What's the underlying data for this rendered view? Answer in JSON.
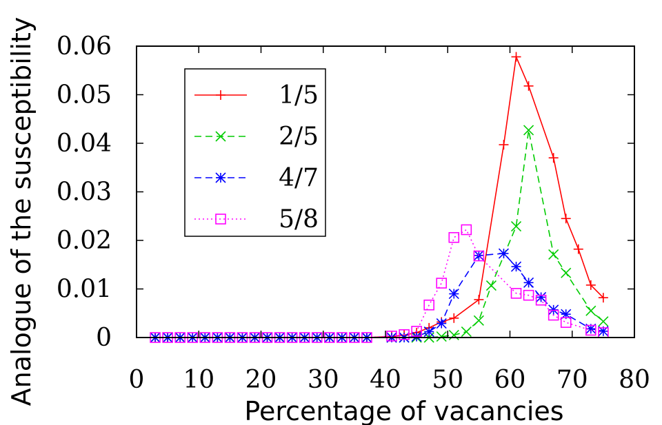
{
  "chart_data": {
    "type": "line",
    "xlabel": "Percentage of vacancies",
    "ylabel": "Analogue of the susceptibility",
    "xlim": [
      0,
      80
    ],
    "ylim": [
      0,
      0.06
    ],
    "x_ticks": [
      "0",
      "10",
      "20",
      "30",
      "40",
      "50",
      "60",
      "70",
      "80"
    ],
    "y_ticks": [
      "0",
      "0.01",
      "0.02",
      "0.03",
      "0.04",
      "0.05",
      "0.06"
    ],
    "grid": false,
    "legend_position": "top-left",
    "series": [
      {
        "name": "1/5",
        "color": "#ff0000",
        "line_style": "solid",
        "marker": "plus",
        "points": [
          [
            3,
            0
          ],
          [
            5,
            0
          ],
          [
            7,
            0
          ],
          [
            9,
            0
          ],
          [
            11,
            0
          ],
          [
            13,
            0
          ],
          [
            15,
            0
          ],
          [
            17,
            0
          ],
          [
            19,
            0
          ],
          [
            21,
            0
          ],
          [
            23,
            0
          ],
          [
            25,
            0
          ],
          [
            27,
            0
          ],
          [
            29,
            0
          ],
          [
            31,
            0
          ],
          [
            33,
            0
          ],
          [
            35,
            0
          ],
          [
            37,
            0
          ],
          [
            41,
            0.0002
          ],
          [
            43,
            0.0005
          ],
          [
            45,
            0.001
          ],
          [
            47,
            0.002
          ],
          [
            49,
            0.0032
          ],
          [
            51,
            0.004
          ],
          [
            55,
            0.0078
          ],
          [
            59,
            0.0397
          ],
          [
            61,
            0.0578
          ],
          [
            63,
            0.0518
          ],
          [
            67,
            0.037
          ],
          [
            69,
            0.0245
          ],
          [
            71,
            0.0182
          ],
          [
            73,
            0.0108
          ],
          [
            75,
            0.0082
          ]
        ]
      },
      {
        "name": "2/5",
        "color": "#00cc00",
        "line_style": "dashed",
        "marker": "cross",
        "points": [
          [
            3,
            0
          ],
          [
            5,
            0
          ],
          [
            7,
            0
          ],
          [
            9,
            0
          ],
          [
            11,
            0
          ],
          [
            13,
            0
          ],
          [
            15,
            0
          ],
          [
            17,
            0
          ],
          [
            19,
            0
          ],
          [
            21,
            0
          ],
          [
            23,
            0
          ],
          [
            25,
            0
          ],
          [
            27,
            0
          ],
          [
            29,
            0
          ],
          [
            31,
            0
          ],
          [
            33,
            0
          ],
          [
            35,
            0
          ],
          [
            37,
            0
          ],
          [
            41,
            0
          ],
          [
            43,
            0
          ],
          [
            45,
            0
          ],
          [
            47,
            0
          ],
          [
            49,
            0.0002
          ],
          [
            51,
            0.0005
          ],
          [
            53,
            0.0012
          ],
          [
            55,
            0.0035
          ],
          [
            57,
            0.0107
          ],
          [
            61,
            0.0229
          ],
          [
            63,
            0.0427
          ],
          [
            67,
            0.0171
          ],
          [
            69,
            0.0133
          ],
          [
            73,
            0.0055
          ],
          [
            75,
            0.0033
          ]
        ]
      },
      {
        "name": "4/7",
        "color": "#0000ff",
        "line_style": "dashed",
        "marker": "star",
        "points": [
          [
            3,
            0
          ],
          [
            5,
            0
          ],
          [
            7,
            0
          ],
          [
            9,
            0
          ],
          [
            11,
            0
          ],
          [
            13,
            0
          ],
          [
            15,
            0
          ],
          [
            17,
            0
          ],
          [
            19,
            0
          ],
          [
            21,
            0
          ],
          [
            23,
            0
          ],
          [
            25,
            0
          ],
          [
            27,
            0
          ],
          [
            29,
            0
          ],
          [
            31,
            0
          ],
          [
            33,
            0
          ],
          [
            35,
            0
          ],
          [
            37,
            0
          ],
          [
            41,
            0
          ],
          [
            43,
            0
          ],
          [
            45,
            0.0002
          ],
          [
            47,
            0.0012
          ],
          [
            49,
            0.0029
          ],
          [
            51,
            0.009
          ],
          [
            55,
            0.0169
          ],
          [
            59,
            0.0173
          ],
          [
            61,
            0.0146
          ],
          [
            63,
            0.0113
          ],
          [
            65,
            0.0083
          ],
          [
            67,
            0.0057
          ],
          [
            69,
            0.0048
          ],
          [
            73,
            0.0018
          ],
          [
            75,
            0.0013
          ]
        ]
      },
      {
        "name": "5/8",
        "color": "#ff00ff",
        "line_style": "dotted",
        "marker": "square",
        "points": [
          [
            3,
            0
          ],
          [
            5,
            0
          ],
          [
            7,
            0
          ],
          [
            9,
            0
          ],
          [
            11,
            0
          ],
          [
            13,
            0
          ],
          [
            15,
            0
          ],
          [
            17,
            0
          ],
          [
            19,
            0
          ],
          [
            21,
            0
          ],
          [
            23,
            0
          ],
          [
            25,
            0
          ],
          [
            27,
            0
          ],
          [
            29,
            0
          ],
          [
            31,
            0
          ],
          [
            33,
            0
          ],
          [
            35,
            0
          ],
          [
            37,
            0
          ],
          [
            41,
            0.0003
          ],
          [
            43,
            0.0006
          ],
          [
            45,
            0.0013
          ],
          [
            47,
            0.0067
          ],
          [
            49,
            0.0112
          ],
          [
            51,
            0.0206
          ],
          [
            53,
            0.0222
          ],
          [
            55,
            0.0168
          ],
          [
            61,
            0.0091
          ],
          [
            63,
            0.0087
          ],
          [
            65,
            0.0077
          ],
          [
            67,
            0.0046
          ],
          [
            69,
            0.0031
          ],
          [
            73,
            0.0015
          ],
          [
            75,
            0.001
          ]
        ]
      }
    ]
  }
}
